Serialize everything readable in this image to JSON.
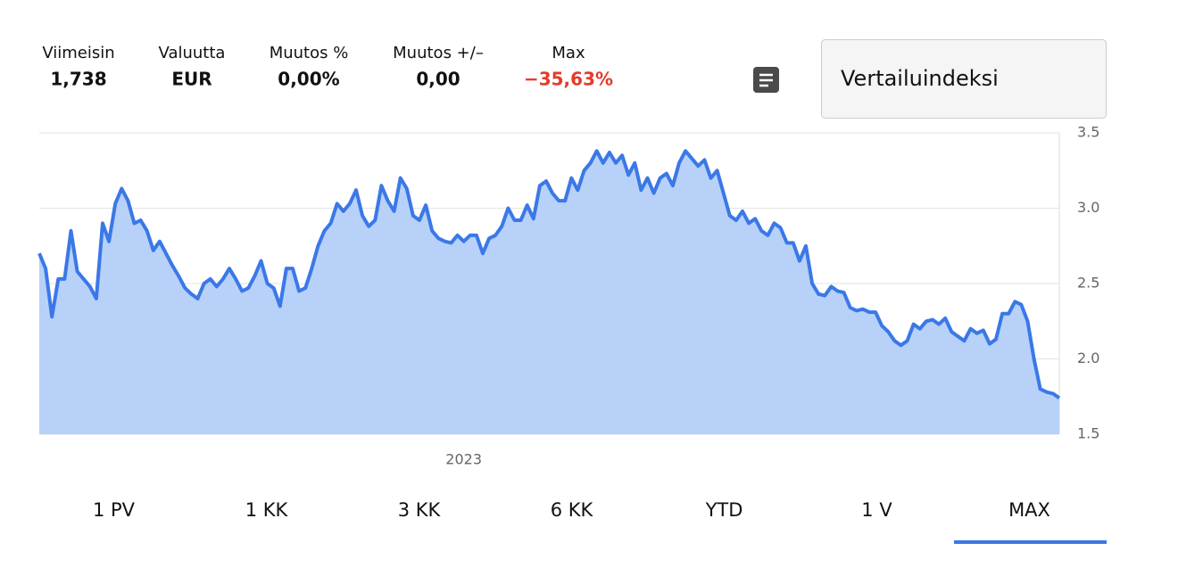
{
  "stats": [
    {
      "label": "Viimeisin",
      "value": "1,738"
    },
    {
      "label": "Valuutta",
      "value": "EUR"
    },
    {
      "label": "Muutos %",
      "value": "0,00%"
    },
    {
      "label": "Muutos +/–",
      "value": "0,00"
    },
    {
      "label": "Max",
      "value": "−35,63%"
    }
  ],
  "compare_button": "Vertailuindeksi",
  "tabs": [
    "1 PV",
    "1 KK",
    "3 KK",
    "6 KK",
    "YTD",
    "1 V",
    "MAX"
  ],
  "chart_data": {
    "type": "area",
    "color": "#3b78e7",
    "fill_color": "#b7d1f8",
    "values": [
      2.7,
      2.6,
      2.28,
      2.53,
      2.53,
      2.85,
      2.58,
      2.53,
      2.48,
      2.4,
      2.9,
      2.78,
      3.03,
      3.13,
      3.05,
      2.9,
      2.92,
      2.85,
      2.72,
      2.78,
      2.7,
      2.62,
      2.55,
      2.47,
      2.43,
      2.4,
      2.5,
      2.53,
      2.48,
      2.53,
      2.6,
      2.53,
      2.45,
      2.47,
      2.55,
      2.65,
      2.5,
      2.47,
      2.35,
      2.6,
      2.6,
      2.45,
      2.47,
      2.6,
      2.75,
      2.85,
      2.9,
      3.03,
      2.98,
      3.03,
      3.12,
      2.95,
      2.88,
      2.92,
      3.15,
      3.05,
      2.98,
      3.2,
      3.13,
      2.95,
      2.92,
      3.02,
      2.85,
      2.8,
      2.78,
      2.77,
      2.82,
      2.78,
      2.82,
      2.82,
      2.7,
      2.8,
      2.82,
      2.88,
      3.0,
      2.92,
      2.92,
      3.02,
      2.93,
      3.15,
      3.18,
      3.1,
      3.05,
      3.05,
      3.2,
      3.12,
      3.25,
      3.3,
      3.38,
      3.3,
      3.37,
      3.3,
      3.35,
      3.22,
      3.3,
      3.12,
      3.2,
      3.1,
      3.2,
      3.23,
      3.15,
      3.3,
      3.38,
      3.33,
      3.28,
      3.32,
      3.2,
      3.25,
      3.1,
      2.95,
      2.92,
      2.98,
      2.9,
      2.93,
      2.85,
      2.82,
      2.9,
      2.87,
      2.77,
      2.77,
      2.65,
      2.75,
      2.5,
      2.43,
      2.42,
      2.48,
      2.45,
      2.44,
      2.34,
      2.32,
      2.33,
      2.31,
      2.31,
      2.22,
      2.18,
      2.12,
      2.09,
      2.12,
      2.23,
      2.2,
      2.25,
      2.26,
      2.23,
      2.27,
      2.18,
      2.15,
      2.12,
      2.2,
      2.17,
      2.19,
      2.1,
      2.13,
      2.3,
      2.3,
      2.38,
      2.36,
      2.25,
      2.0,
      1.8,
      1.78,
      1.77,
      1.74
    ],
    "xticks": [
      {
        "value": 67,
        "label": "2023"
      }
    ],
    "ylim": [
      1.5,
      3.5
    ],
    "yticks": [
      1.5,
      {
        "value": 2,
        "label": "2.0"
      },
      2.5,
      {
        "value": 3,
        "label": "3.0"
      },
      3.5
    ],
    "grid": true
  }
}
